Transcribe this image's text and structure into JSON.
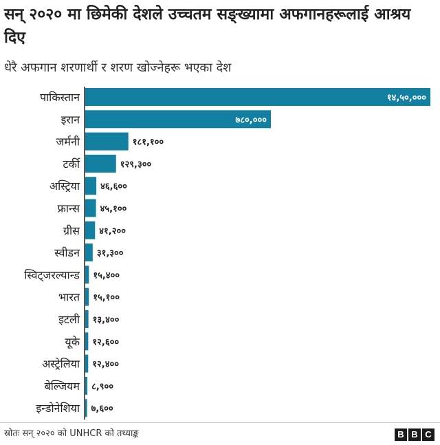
{
  "title": "सन् २०२० मा छिमेकी देशले उच्चतम सङ्ख्यामा अफगानहरूलाई आश्रय दिए",
  "subtitle": "धेरै अफगान शरणार्थी र शरण खोज्नेहरू भएका देश",
  "source": "स्रोतः सन् २०२० को UNHCR को तथ्याङ्क",
  "logo_letters": [
    "B",
    "B",
    "C"
  ],
  "colors": {
    "bar": "#1380a1",
    "axis": "#222222"
  },
  "chart_data": {
    "type": "bar",
    "orientation": "horizontal",
    "title": "सन् २०२० मा छिमेकी देशले उच्चतम सङ्ख्यामा अफगानहरूलाई आश्रय दिए",
    "subtitle": "धेरै अफगान शरणार्थी र शरण खोज्नेहरू भएका देश",
    "xlabel": "",
    "ylabel": "",
    "xlim": [
      0,
      1450000
    ],
    "grid": false,
    "categories": [
      "पाकिस्तान",
      "इरान",
      "जर्मनी",
      "टर्की",
      "अस्ट्रिया",
      "फ्रान्स",
      "ग्रीस",
      "स्वीडन",
      "स्विट्जरल्यान्ड",
      "भारत",
      "इटली",
      "यूके",
      "अस्ट्रेलिया",
      "बेल्जियम",
      "इन्डोनेशिया"
    ],
    "values": [
      1450000,
      780000,
      181100,
      129300,
      46600,
      45100,
      41200,
      31300,
      15400,
      15100,
      13400,
      12600,
      12400,
      8900,
      7600
    ],
    "value_labels": [
      "१४,५०,०००",
      "७८०,०००",
      "१८१,१००",
      "१२९,३००",
      "४६,६००",
      "४५,१००",
      "४१,२००",
      "३१,३००",
      "१५,४००",
      "१५,१००",
      "१३,४००",
      "१२,६००",
      "१२,४००",
      "८,९००",
      "७,६००"
    ]
  }
}
